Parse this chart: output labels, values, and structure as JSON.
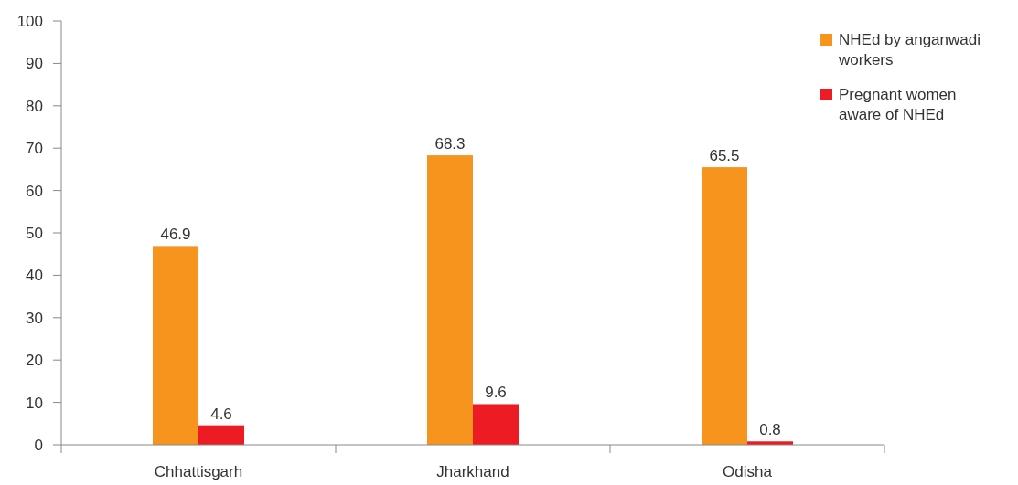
{
  "chart_data": {
    "type": "bar",
    "categories": [
      "Chhattisgarh",
      "Jharkhand",
      "Odisha"
    ],
    "series": [
      {
        "name": "NHEd by anganwadi workers",
        "color": "#f7941d",
        "values": [
          46.9,
          68.3,
          65.5
        ]
      },
      {
        "name": "Pregnant women aware of NHEd",
        "color": "#ed1c24",
        "values": [
          4.6,
          9.6,
          0.8
        ]
      }
    ],
    "ylim": [
      0,
      100
    ],
    "yticks": [
      0,
      10,
      20,
      30,
      40,
      50,
      60,
      70,
      80,
      90,
      100
    ],
    "grid": false,
    "legend": "top right",
    "data_labels": true
  }
}
